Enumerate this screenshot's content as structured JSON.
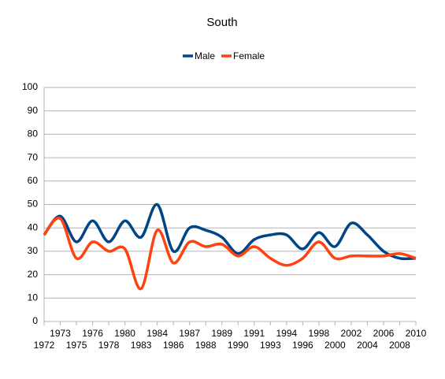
{
  "chart_data": {
    "type": "line",
    "title": "South",
    "categories": [
      "1972",
      "1973",
      "1975",
      "1976",
      "1978",
      "1980",
      "1983",
      "1984",
      "1986",
      "1987",
      "1988",
      "1989",
      "1990",
      "1991",
      "1993",
      "1994",
      "1996",
      "1998",
      "2000",
      "2002",
      "2004",
      "2006",
      "2008",
      "2010"
    ],
    "series": [
      {
        "name": "Male",
        "color": "#004586",
        "values": [
          37,
          45,
          34,
          43,
          34,
          43,
          36,
          50,
          30,
          40,
          39,
          36,
          29,
          35,
          37,
          37,
          31,
          38,
          32,
          42,
          37,
          30,
          27,
          27
        ]
      },
      {
        "name": "Female",
        "color": "#ff420e",
        "values": [
          37,
          44,
          27,
          34,
          30,
          31,
          14,
          39,
          25,
          34,
          32,
          33,
          28,
          32,
          27,
          24,
          27,
          34,
          27,
          28,
          28,
          28,
          29,
          27
        ]
      }
    ],
    "ylim": [
      0,
      100
    ],
    "yticks": [
      0,
      10,
      20,
      30,
      40,
      50,
      60,
      70,
      80,
      90,
      100
    ],
    "grid": true,
    "smooth": true,
    "legend": "top"
  }
}
